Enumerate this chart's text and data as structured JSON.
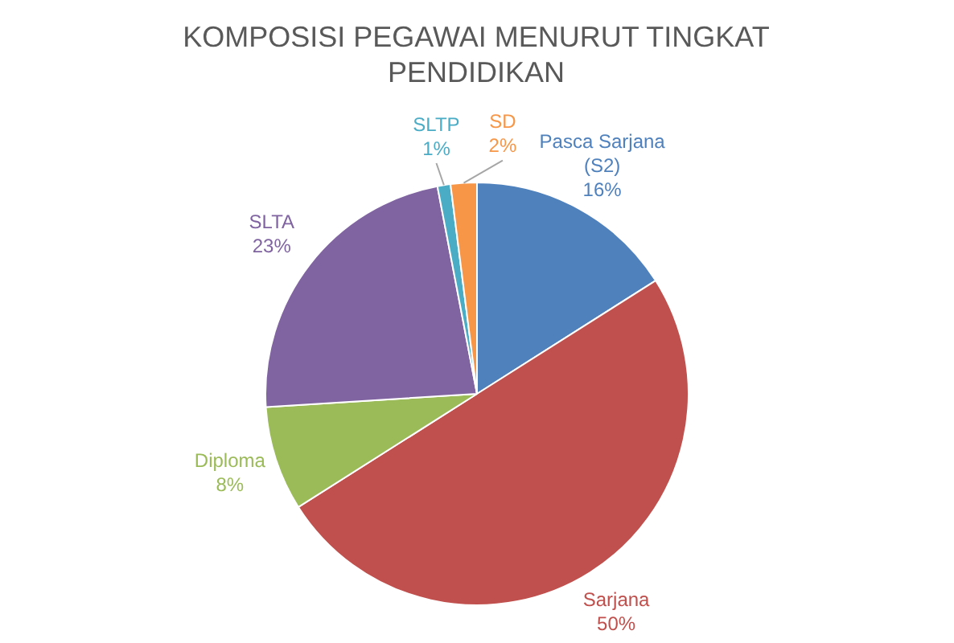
{
  "chart_data": {
    "type": "pie",
    "title": "KOMPOSISI PEGAWAI MENURUT TINGKAT PENDIDIKAN",
    "categories": [
      "Pasca Sarjana (S2)",
      "Sarjana",
      "Diploma",
      "SLTA",
      "SLTP",
      "SD"
    ],
    "values": [
      16,
      50,
      8,
      23,
      1,
      2
    ],
    "value_labels": [
      "16%",
      "50%",
      "8%",
      "23%",
      "1%",
      "2%"
    ],
    "colors": [
      "#4f81bd",
      "#c0504d",
      "#9bbb59",
      "#8064a2",
      "#4bacc6",
      "#f79646"
    ],
    "legend": false
  }
}
